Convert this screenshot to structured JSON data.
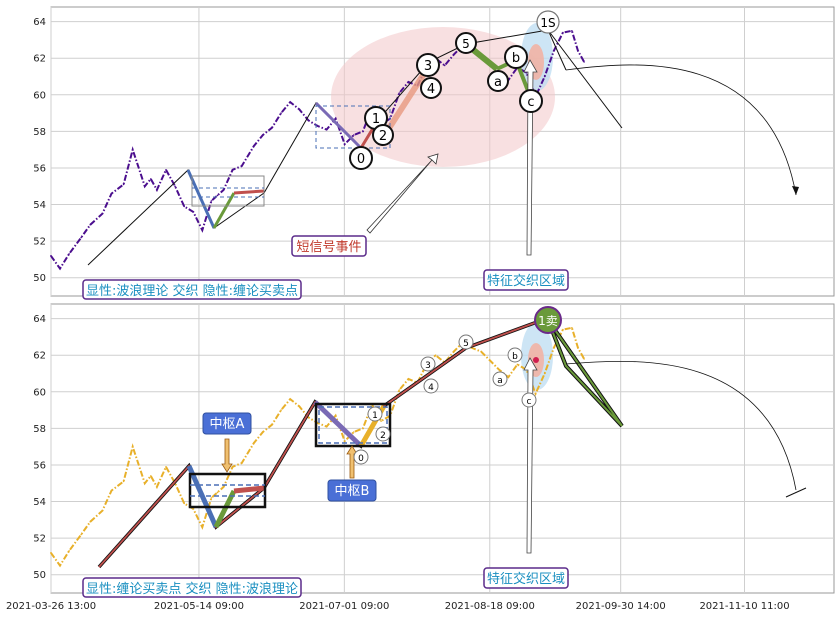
{
  "chart_data": [
    {
      "type": "line",
      "ylim": [
        49,
        64.8
      ],
      "yticks": [
        50,
        52,
        54,
        56,
        58,
        60,
        62,
        64
      ],
      "x_range": [
        "2021-03-26",
        "2021-12-10"
      ],
      "grid": true,
      "series": [
        {
          "color": "#4b0e8e",
          "style": "dashed",
          "x": [
            "2021-03-26",
            "2021-03-29",
            "2021-04-01",
            "2021-04-05",
            "2021-04-08",
            "2021-04-12",
            "2021-04-15",
            "2021-04-19",
            "2021-04-22",
            "2021-04-26",
            "2021-04-28",
            "2021-04-30",
            "2021-05-03",
            "2021-05-06",
            "2021-05-09",
            "2021-05-12",
            "2021-05-15",
            "2021-05-18",
            "2021-05-20",
            "2021-05-22",
            "2021-05-25",
            "2021-05-28",
            "2021-06-01",
            "2021-06-04",
            "2021-06-07",
            "2021-06-10",
            "2021-06-13",
            "2021-06-16",
            "2021-06-19",
            "2021-06-22",
            "2021-06-25",
            "2021-06-28",
            "2021-07-01",
            "2021-07-04",
            "2021-07-07",
            "2021-07-10",
            "2021-07-13",
            "2021-07-16",
            "2021-07-19",
            "2021-07-22",
            "2021-07-25",
            "2021-07-28",
            "2021-07-31",
            "2021-08-03",
            "2021-08-06",
            "2021-08-09",
            "2021-08-12",
            "2021-08-15",
            "2021-08-18",
            "2021-08-21",
            "2021-08-24",
            "2021-08-27",
            "2021-08-30",
            "2021-09-02",
            "2021-09-05",
            "2021-09-08",
            "2021-09-11",
            "2021-09-14",
            "2021-09-16",
            "2021-09-18"
          ],
          "y": [
            51.2,
            50.5,
            51.3,
            52.2,
            52.9,
            53.5,
            54.6,
            55.1,
            57.0,
            55.0,
            55.4,
            54.8,
            55.9,
            55.0,
            53.9,
            53.6,
            52.6,
            54.2,
            54.5,
            54.8,
            55.9,
            56.1,
            57.2,
            57.8,
            58.2,
            59.0,
            59.6,
            59.2,
            58.6,
            58.3,
            58.1,
            58.7,
            57.3,
            57.8,
            58.0,
            59.3,
            58.4,
            58.7,
            60.1,
            60.7,
            60.5,
            61.5,
            62.0,
            61.6,
            62.2,
            62.7,
            62.4,
            62.2,
            61.7,
            61.2,
            60.8,
            61.5,
            61.2,
            59.9,
            61.0,
            62.4,
            63.4,
            63.5,
            62.4,
            61.8
          ]
        }
      ]
    },
    {
      "type": "line",
      "ylim": [
        49,
        64.8
      ],
      "yticks": [
        50,
        52,
        54,
        56,
        58,
        60,
        62,
        64
      ],
      "xticks": [
        "2021-03-26 13:00",
        "2021-05-14 09:00",
        "2021-07-01 09:00",
        "2021-08-18 09:00",
        "2021-09-30 14:00",
        "2021-11-10 11:00"
      ],
      "grid": true,
      "series": [
        {
          "color": "#e8b02a",
          "style": "dashed",
          "x": [
            "2021-03-26",
            "2021-03-29",
            "2021-04-01",
            "2021-04-05",
            "2021-04-08",
            "2021-04-12",
            "2021-04-15",
            "2021-04-19",
            "2021-04-22",
            "2021-04-26",
            "2021-04-28",
            "2021-04-30",
            "2021-05-03",
            "2021-05-06",
            "2021-05-09",
            "2021-05-12",
            "2021-05-15",
            "2021-05-18",
            "2021-05-20",
            "2021-05-22",
            "2021-05-25",
            "2021-05-28",
            "2021-06-01",
            "2021-06-04",
            "2021-06-07",
            "2021-06-10",
            "2021-06-13",
            "2021-06-16",
            "2021-06-19",
            "2021-06-22",
            "2021-06-25",
            "2021-06-28",
            "2021-07-01",
            "2021-07-04",
            "2021-07-07",
            "2021-07-10",
            "2021-07-13",
            "2021-07-16",
            "2021-07-19",
            "2021-07-22",
            "2021-07-25",
            "2021-07-28",
            "2021-07-31",
            "2021-08-03",
            "2021-08-06",
            "2021-08-09",
            "2021-08-12",
            "2021-08-15",
            "2021-08-18",
            "2021-08-21",
            "2021-08-24",
            "2021-08-27",
            "2021-08-30",
            "2021-09-02",
            "2021-09-05",
            "2021-09-08",
            "2021-09-11",
            "2021-09-14",
            "2021-09-16",
            "2021-09-18"
          ],
          "y": [
            51.2,
            50.5,
            51.3,
            52.2,
            52.9,
            53.5,
            54.6,
            55.1,
            57.0,
            55.0,
            55.4,
            54.8,
            55.9,
            55.0,
            53.9,
            53.6,
            52.6,
            54.2,
            54.5,
            54.8,
            55.9,
            56.1,
            57.2,
            57.8,
            58.2,
            59.0,
            59.6,
            59.2,
            58.6,
            58.3,
            58.1,
            58.7,
            57.3,
            57.8,
            58.0,
            59.3,
            58.4,
            58.7,
            60.1,
            60.7,
            60.5,
            61.5,
            62.0,
            61.6,
            62.2,
            62.7,
            62.4,
            62.2,
            61.7,
            61.2,
            60.8,
            61.5,
            61.2,
            59.9,
            61.0,
            62.4,
            63.4,
            63.5,
            62.4,
            61.8
          ]
        }
      ]
    }
  ],
  "annotations": {
    "top": {
      "signal_label": "短信号事件",
      "zone_label": "特征交织区域",
      "caption": "显性:波浪理论 交织 隐性:缠论买卖点",
      "wave_labels": [
        "0",
        "1",
        "2",
        "3",
        "4",
        "5",
        "a",
        "b",
        "c",
        "1S"
      ]
    },
    "bottom": {
      "pivot_a": "中枢A",
      "pivot_b": "中枢B",
      "zone_label": "特征交织区域",
      "caption": "显性:缠论买卖点 交织 隐性:波浪理论",
      "sell_label": "1卖",
      "wave_labels": [
        "0",
        "1",
        "2",
        "3",
        "4",
        "5",
        "a",
        "b",
        "c"
      ]
    }
  },
  "colors": {
    "top_price": "#4b0e8e",
    "bottom_price": "#e8b02a",
    "caption_text": "#1a8fc0",
    "caption_border": "#5a2a8a",
    "signal_text": "#c0392b",
    "pivot_box_fill": "#4a6fd6",
    "stroke_green": "#6a9a3a",
    "stroke_red": "#c0504d",
    "stroke_blue": "#4a6fb5",
    "stroke_purple": "#7a6ab5",
    "ellipse_fill": "#f2c6c8"
  }
}
